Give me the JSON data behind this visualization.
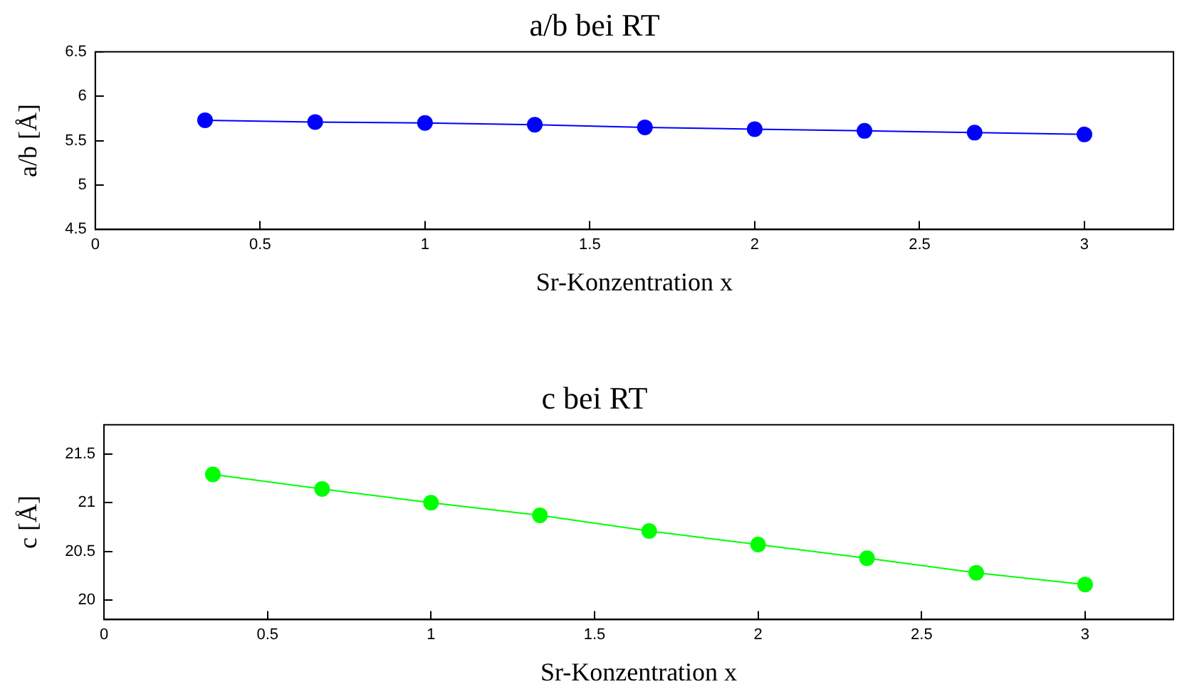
{
  "chart_data": [
    {
      "type": "line",
      "title": "a/b bei RT",
      "xlabel": "Sr-Konzentration x",
      "ylabel": "a/b [Å]",
      "x": [
        0.333,
        0.667,
        1,
        1.333,
        1.667,
        2,
        2.333,
        2.667,
        3
      ],
      "series": [
        {
          "color": "#0000ff",
          "values": [
            5.73,
            5.71,
            5.7,
            5.68,
            5.65,
            5.63,
            5.61,
            5.59,
            5.57
          ]
        }
      ],
      "xlim": [
        0,
        3.27
      ],
      "xticks": [
        0,
        0.5,
        1,
        1.5,
        2,
        2.5,
        3
      ],
      "ylim": [
        4.5,
        6.5
      ],
      "yticks": [
        4.5,
        5,
        5.5,
        6,
        6.5
      ],
      "grid": false,
      "legend": false,
      "marker": "circle",
      "line_style": "solid"
    },
    {
      "type": "line",
      "title": "c bei RT",
      "xlabel": "Sr-Konzentration x",
      "ylabel": "c [Å]",
      "x": [
        0.333,
        0.667,
        1,
        1.333,
        1.667,
        2,
        2.333,
        2.667,
        3
      ],
      "series": [
        {
          "color": "#00ff00",
          "values": [
            21.29,
            21.14,
            21.0,
            20.87,
            20.71,
            20.57,
            20.43,
            20.28,
            20.16
          ]
        }
      ],
      "xlim": [
        0,
        3.27
      ],
      "xticks": [
        0,
        0.5,
        1,
        1.5,
        2,
        2.5,
        3
      ],
      "ylim": [
        19.8,
        21.8
      ],
      "yticks": [
        20,
        20.5,
        21,
        21.5
      ],
      "grid": false,
      "legend": false,
      "marker": "circle",
      "line_style": "solid"
    }
  ]
}
